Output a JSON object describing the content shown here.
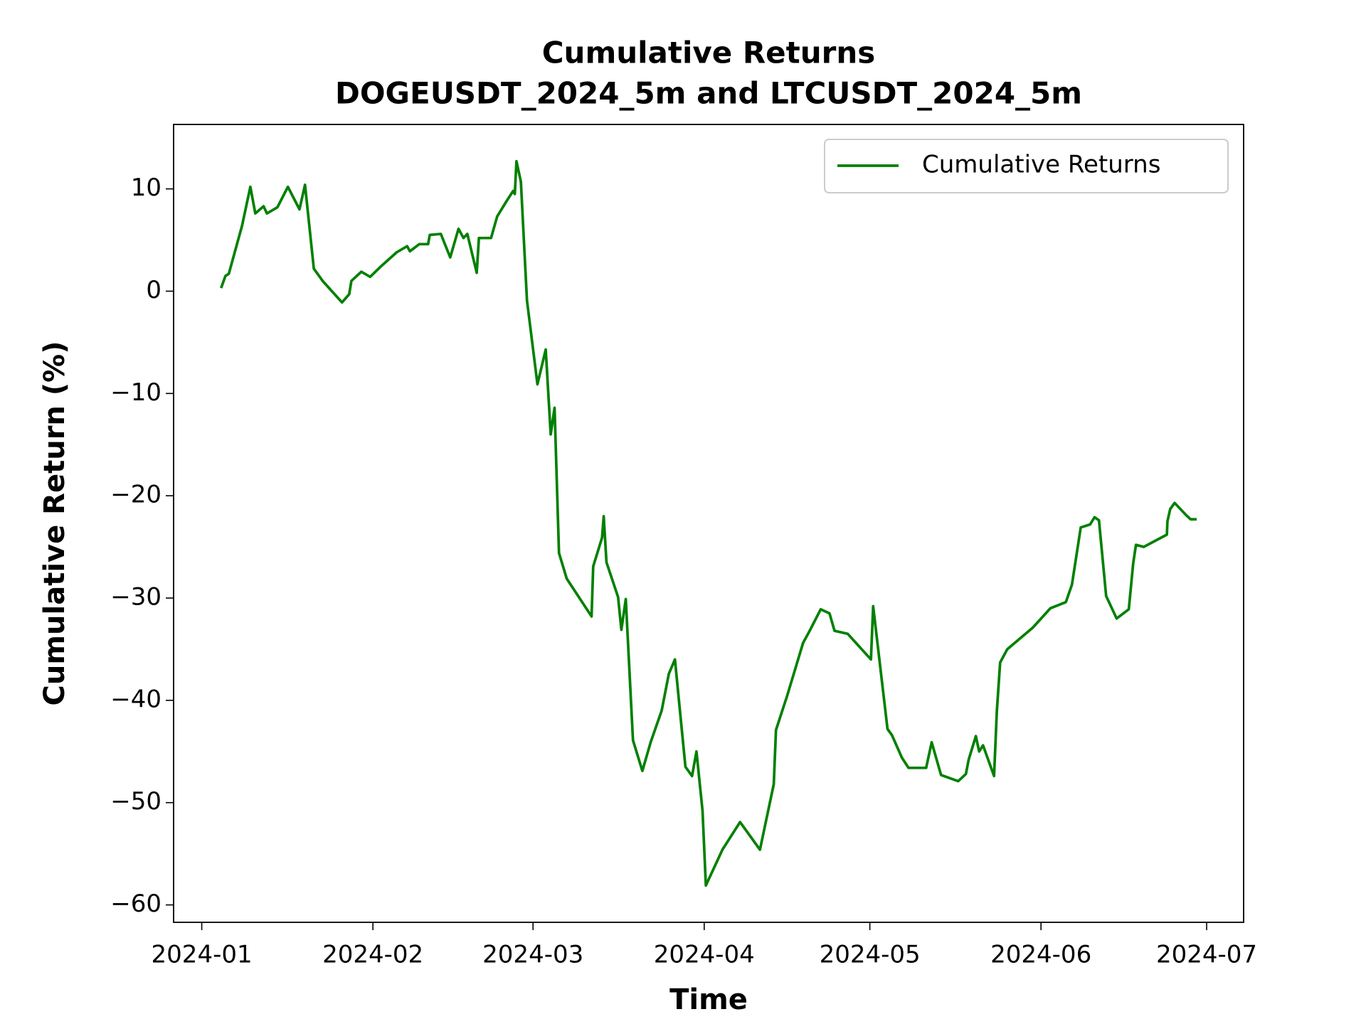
{
  "chart_data": {
    "type": "line",
    "title": [
      "Cumulative Returns",
      "DOGEUSDT_2024_5m and LTCUSDT_2024_5m"
    ],
    "xlabel": "Time",
    "ylabel": "Cumulative Return (%)",
    "x": [
      3.5,
      4.3,
      4.9,
      7.3,
      8.8,
      9.7,
      11.2,
      11.8,
      13.7,
      15.6,
      17.7,
      18.7,
      20.3,
      21.9,
      25.4,
      26.7,
      27.1,
      28.9,
      30.5,
      32.4,
      35.3,
      37.2,
      37.7,
      39.4,
      41.0,
      41.3,
      43.3,
      45.0,
      46.5,
      47.4,
      48.1,
      49.8,
      50.2,
      52.4,
      53.5,
      55.2,
      56.4,
      56.7,
      57.0,
      57.8,
      58.9,
      60.8,
      62.3,
      63.2,
      63.9,
      64.7,
      66.1,
      70.6,
      70.9,
      72.5,
      72.8,
      73.3,
      75.4,
      76.0,
      76.8,
      78.1,
      79.8,
      81.3,
      83.3,
      84.6,
      85.7,
      87.6,
      88.8,
      89.6,
      90.7,
      91.3,
      94.3,
      97.5,
      101.1,
      103.6,
      104.0,
      106.0,
      108.9,
      110.2,
      112.1,
      113.7,
      114.6,
      117.0,
      121.2,
      121.6,
      124.2,
      125.0,
      126.8,
      128.0,
      131.2,
      132.2,
      133.9,
      137.0,
      138.4,
      138.9,
      140.2,
      140.8,
      141.5,
      143.5,
      144.0,
      144.6,
      145.9,
      150.5,
      153.7,
      156.5,
      157.6,
      159.2,
      160.9,
      161.7,
      162.5,
      163.8,
      165.7,
      167.9,
      168.7,
      169.2,
      170.6,
      174.8,
      174.9,
      175.4,
      176.2,
      178.3,
      179.1,
      180.2
    ],
    "series": [
      {
        "name": "Cumulative Returns",
        "color": "#008000",
        "values": [
          0.3,
          1.5,
          1.7,
          6.4,
          10.2,
          7.6,
          8.3,
          7.6,
          8.2,
          10.2,
          8.0,
          10.4,
          2.2,
          1.0,
          -1.1,
          -0.3,
          1.0,
          1.9,
          1.4,
          2.4,
          3.8,
          4.4,
          3.9,
          4.6,
          4.6,
          5.5,
          5.6,
          3.3,
          6.1,
          5.2,
          5.6,
          1.8,
          5.2,
          5.2,
          7.3,
          8.8,
          9.8,
          9.5,
          12.7,
          10.7,
          -0.9,
          -9.1,
          -5.7,
          -14.0,
          -11.4,
          -25.6,
          -28.1,
          -31.8,
          -26.9,
          -24.1,
          -22.0,
          -26.5,
          -29.9,
          -33.1,
          -30.1,
          -43.9,
          -46.9,
          -44.1,
          -41.0,
          -37.4,
          -36.0,
          -46.5,
          -47.4,
          -45.0,
          -50.8,
          -58.1,
          -54.6,
          -51.9,
          -54.6,
          -48.2,
          -42.9,
          -39.6,
          -34.4,
          -33.1,
          -31.1,
          -31.5,
          -33.2,
          -33.5,
          -36.0,
          -30.8,
          -42.8,
          -43.4,
          -45.6,
          -46.6,
          -46.6,
          -44.1,
          -47.3,
          -47.9,
          -47.2,
          -45.8,
          -43.5,
          -45.0,
          -44.4,
          -47.4,
          -41.1,
          -36.3,
          -35.0,
          -32.9,
          -31.0,
          -30.4,
          -28.7,
          -23.1,
          -22.8,
          -22.1,
          -22.4,
          -29.8,
          -32.0,
          -31.1,
          -26.6,
          -24.8,
          -25.0,
          -23.8,
          -22.5,
          -21.3,
          -20.7,
          -21.9,
          -22.3,
          -22.3
        ]
      }
    ],
    "xlim": [
      -5.1,
      188.7
    ],
    "xticks": [
      {
        "value": 0,
        "label": "2024-01"
      },
      {
        "value": 31,
        "label": "2024-02"
      },
      {
        "value": 60,
        "label": "2024-03"
      },
      {
        "value": 91,
        "label": "2024-04"
      },
      {
        "value": 121,
        "label": "2024-05"
      },
      {
        "value": 152,
        "label": "2024-06"
      },
      {
        "value": 182,
        "label": "2024-07"
      }
    ],
    "ylim": [
      -61.7,
      16.3
    ],
    "yticks": [
      {
        "value": -60,
        "label": "−60"
      },
      {
        "value": -50,
        "label": "−50"
      },
      {
        "value": -40,
        "label": "−40"
      },
      {
        "value": -30,
        "label": "−30"
      },
      {
        "value": -20,
        "label": "−20"
      },
      {
        "value": -10,
        "label": "−10"
      },
      0,
      10
    ],
    "grid": false,
    "legend": "upper right"
  }
}
